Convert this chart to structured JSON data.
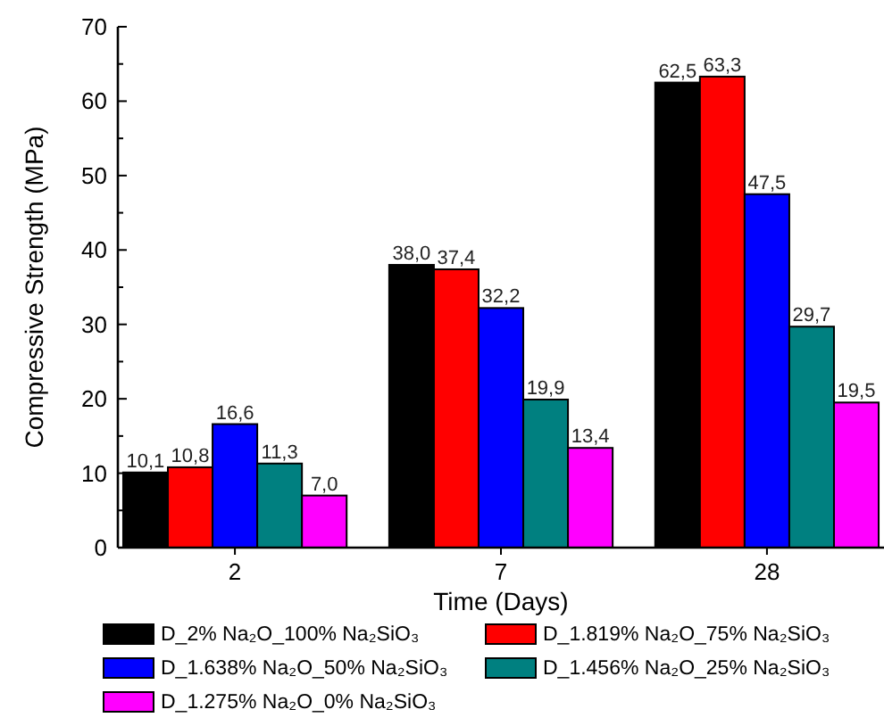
{
  "chart_data": {
    "type": "bar",
    "xlabel": "Time (Days)",
    "ylabel": "Compressive Strength (MPa)",
    "categories": [
      "2",
      "7",
      "28"
    ],
    "series": [
      {
        "name": "D_2% Na₂O_100% Na₂SiO₃",
        "color": "#000000",
        "values": [
          10.1,
          38.0,
          62.5
        ],
        "value_labels": [
          "10,1",
          "38,0",
          "62,5"
        ]
      },
      {
        "name": "D_1.819% Na₂O_75% Na₂SiO₃",
        "color": "#ff0000",
        "values": [
          10.8,
          37.4,
          63.3
        ],
        "value_labels": [
          "10,8",
          "37,4",
          "63,3"
        ]
      },
      {
        "name": "D_1.638% Na₂O_50% Na₂SiO₃",
        "color": "#0000ff",
        "values": [
          16.6,
          32.2,
          47.5
        ],
        "value_labels": [
          "16,6",
          "32,2",
          "47,5"
        ]
      },
      {
        "name": "D_1.456% Na₂O_25% Na₂SiO₃",
        "color": "#008080",
        "values": [
          11.3,
          19.9,
          29.7
        ],
        "value_labels": [
          "11,3",
          "19,9",
          "29,7"
        ]
      },
      {
        "name": "D_1.275% Na₂O_0% Na₂SiO₃",
        "color": "#ff00ff",
        "values": [
          7.0,
          13.4,
          19.5
        ],
        "value_labels": [
          "7,0",
          "13,4",
          "19,5"
        ]
      }
    ],
    "ylim": [
      0,
      70
    ],
    "yticks": [
      0,
      {
        "value": 5,
        "label": null
      },
      10,
      {
        "value": 15,
        "label": null
      },
      20,
      {
        "value": 25,
        "label": null
      },
      30,
      {
        "value": 35,
        "label": null
      },
      40,
      {
        "value": 45,
        "label": null
      },
      50,
      {
        "value": 55,
        "label": null
      },
      60,
      {
        "value": 65,
        "label": null
      },
      70
    ],
    "grid": false,
    "legend": "bottom"
  }
}
